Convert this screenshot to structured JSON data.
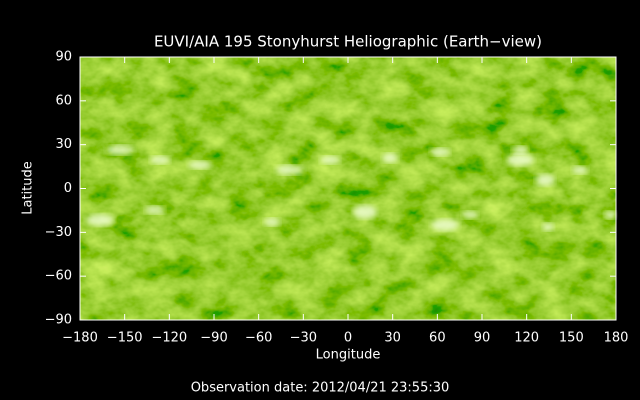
{
  "chart_data": {
    "type": "image",
    "title": "EUVI/AIA 195 Stonyhurst Heliographic (Earth−view)",
    "xlabel": "Longitude",
    "ylabel": "Latitude",
    "annotation": "Observation date: 2012/04/21 23:55:30",
    "color": "#7cb800",
    "xlim": [
      -180,
      180
    ],
    "ylim": [
      -90,
      90
    ],
    "xticks": [
      {
        "value": -180,
        "label": "−180"
      },
      {
        "value": -150,
        "label": "−150"
      },
      {
        "value": -120,
        "label": "−120"
      },
      {
        "value": -90,
        "label": "−90"
      },
      {
        "value": -60,
        "label": "−60"
      },
      {
        "value": -30,
        "label": "−30"
      },
      0,
      30,
      60,
      90,
      120,
      150,
      180
    ],
    "yticks": [
      {
        "value": -90,
        "label": "−90"
      },
      {
        "value": -60,
        "label": "−60"
      },
      {
        "value": -30,
        "label": "−30"
      },
      0,
      30,
      60,
      90
    ]
  }
}
